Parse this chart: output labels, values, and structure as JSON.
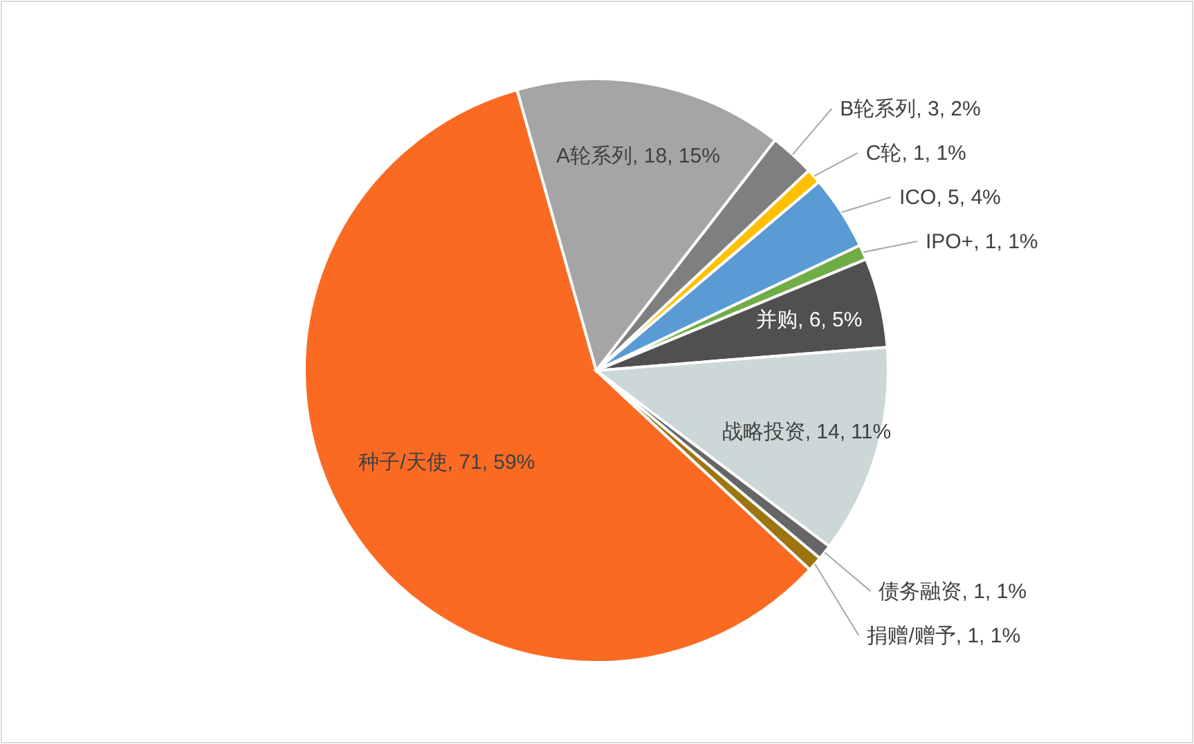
{
  "chart_data": {
    "type": "pie",
    "categories": [
      "种子/天使",
      "A轮系列",
      "B轮系列",
      "C轮",
      "ICO",
      "IPO+",
      "并购",
      "战略投资",
      "债务融资",
      "捐赠/赠予"
    ],
    "values": [
      71,
      18,
      3,
      1,
      5,
      1,
      6,
      14,
      1,
      1
    ],
    "colors": [
      "#fa6a22",
      "#a5a5a5",
      "#7f7f7f",
      "#ffc000",
      "#5b9bd5",
      "#70ad47",
      "#505050",
      "#ccd8d8",
      "#666666",
      "#9c7410"
    ],
    "value_labels": [
      ", 71, 59%",
      ", 18, 15%",
      ", 3, 2%",
      ", 1, 1%",
      ", 5, 4%",
      ", 1, 1%",
      ", 6, 5%",
      ", 14, 11%",
      ", 1, 1%",
      ", 1, 1%"
    ]
  }
}
